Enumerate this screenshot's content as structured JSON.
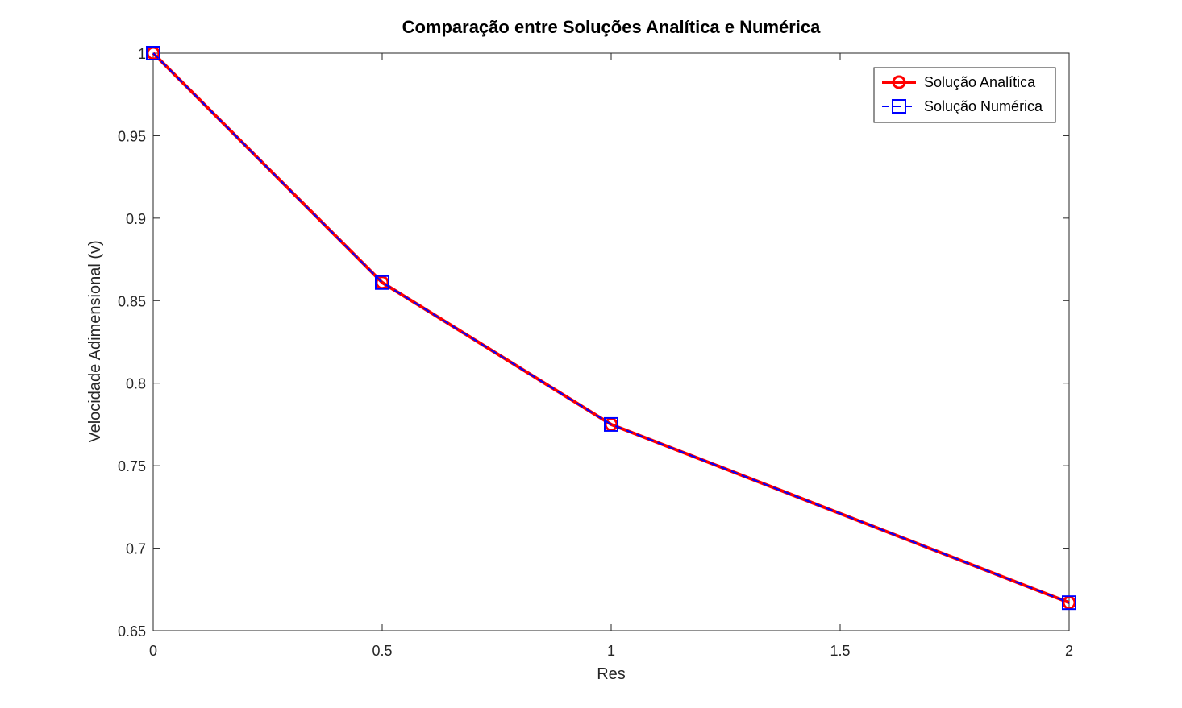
{
  "chart_data": {
    "type": "line",
    "title": "Comparação entre Soluções Analítica e Numérica",
    "xlabel": "Res",
    "ylabel": "Velocidade Adimensional (v)",
    "xlim": [
      0,
      2
    ],
    "ylim": [
      0.65,
      1
    ],
    "xticks": [
      0,
      0.5,
      1,
      1.5,
      2
    ],
    "xtick_labels": [
      "0",
      "0.5",
      "1",
      "1.5",
      "2"
    ],
    "yticks": [
      0.65,
      0.7,
      0.75,
      0.8,
      0.85,
      0.9,
      0.95,
      1
    ],
    "ytick_labels": [
      "0.65",
      "0.7",
      "0.75",
      "0.8",
      "0.85",
      "0.9",
      "0.95",
      "1"
    ],
    "grid": true,
    "legend_position": "top-right",
    "x": [
      0,
      0.5,
      1,
      2
    ],
    "series": [
      {
        "name": "Solução Analítica",
        "values": [
          1.0,
          0.861,
          0.775,
          0.667
        ],
        "color": "#ff0000",
        "line_style": "solid",
        "marker": "circle"
      },
      {
        "name": "Solução Numérica",
        "values": [
          1.0,
          0.861,
          0.775,
          0.667
        ],
        "color": "#0000ff",
        "line_style": "dashed",
        "marker": "square"
      }
    ]
  }
}
